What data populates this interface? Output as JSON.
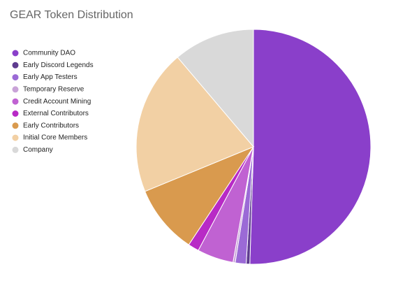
{
  "chart_data": {
    "type": "pie",
    "title": "GEAR Token Distribution",
    "categories": [
      "Community DAO",
      "Early Discord Legends",
      "Early App Testers",
      "Temporary Reserve",
      "Credit Account Mining",
      "External Contributors",
      "Early Contributors",
      "Initial Core Members",
      "Company"
    ],
    "values": [
      50.5,
      0.5,
      1.5,
      0.3,
      5,
      1.5,
      9.5,
      20,
      11.2
    ],
    "colors": [
      "#8a3fca",
      "#5e3c8f",
      "#9b6ad6",
      "#c9a3d8",
      "#c062d2",
      "#b82ac6",
      "#d99a4e",
      "#f2d0a4",
      "#d9d9d9"
    ],
    "legend": "left"
  }
}
